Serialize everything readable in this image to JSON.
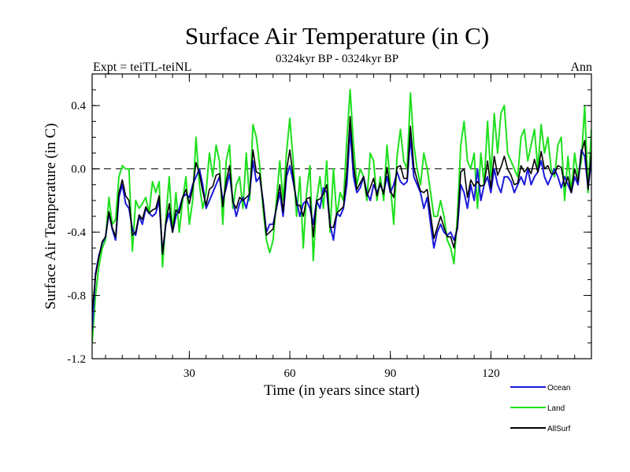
{
  "chart_data": {
    "type": "line",
    "title": "Surface Air Temperature (in C)",
    "subtitle_left": "Expt = teiTL-teiNL",
    "subtitle_center": "0324kyr BP - 0324kyr BP",
    "subtitle_right": "Ann",
    "xlabel": "Time (in years since start)",
    "ylabel": "Surface Air Temperature (in C)",
    "xlim": [
      1,
      150
    ],
    "ylim": [
      -1.2,
      0.6
    ],
    "xticks": [
      30,
      60,
      90,
      120
    ],
    "xtick_labels": [
      "30",
      "60",
      "90",
      "120"
    ],
    "yticks": [
      -1.2,
      -0.8,
      -0.4,
      0.0,
      0.4
    ],
    "ytick_labels": [
      "-1.2",
      "-0.8",
      "-0.4",
      "0.0",
      "0.4"
    ],
    "reference_line": 0.0,
    "series": [
      {
        "name": "Ocean",
        "color": "#1a1adc",
        "values": [
          -1.02,
          -0.66,
          -0.55,
          -0.47,
          -0.43,
          -0.28,
          -0.38,
          -0.45,
          -0.18,
          -0.1,
          -0.22,
          -0.25,
          -0.38,
          -0.42,
          -0.3,
          -0.35,
          -0.25,
          -0.28,
          -0.3,
          -0.28,
          -0.2,
          -0.53,
          -0.35,
          -0.28,
          -0.4,
          -0.3,
          -0.25,
          -0.18,
          -0.16,
          -0.18,
          -0.1,
          -0.05,
          0.0,
          -0.1,
          -0.25,
          -0.2,
          -0.15,
          -0.1,
          -0.05,
          -0.2,
          -0.12,
          -0.03,
          -0.2,
          -0.3,
          -0.22,
          -0.18,
          -0.25,
          -0.15,
          0.05,
          -0.08,
          -0.05,
          -0.2,
          -0.4,
          -0.35,
          -0.35,
          -0.25,
          -0.15,
          -0.3,
          -0.05,
          0.02,
          -0.08,
          -0.2,
          -0.3,
          -0.22,
          -0.2,
          -0.25,
          -0.35,
          -0.2,
          -0.25,
          -0.12,
          -0.15,
          -0.35,
          -0.45,
          -0.28,
          -0.3,
          -0.25,
          -0.1,
          0.25,
          -0.05,
          -0.15,
          -0.12,
          -0.05,
          -0.15,
          -0.2,
          -0.1,
          -0.15,
          -0.1,
          -0.15,
          -0.05,
          -0.15,
          -0.1,
          -0.02,
          -0.08,
          -0.1,
          -0.08,
          0.2,
          -0.05,
          -0.1,
          -0.15,
          -0.25,
          -0.18,
          -0.35,
          -0.5,
          -0.4,
          -0.35,
          -0.4,
          -0.42,
          -0.4,
          -0.45,
          -0.38,
          -0.1,
          -0.15,
          -0.25,
          -0.1,
          -0.2,
          0.0,
          -0.2,
          -0.1,
          -0.05,
          -0.15,
          0.0,
          -0.1,
          -0.15,
          -0.05,
          -0.05,
          -0.08,
          -0.15,
          -0.1,
          -0.05,
          -0.1,
          0.0,
          -0.1,
          -0.05,
          -0.02,
          0.05,
          -0.05,
          -0.1,
          -0.05,
          0.0,
          -0.05,
          -0.12,
          -0.05,
          -0.1,
          -0.15,
          -0.05,
          -0.1,
          0.12,
          0.08,
          -0.12,
          0.05
        ]
      },
      {
        "name": "Land",
        "color": "#1ee01e",
        "values": [
          -1.1,
          -0.8,
          -0.62,
          -0.5,
          -0.45,
          -0.18,
          -0.35,
          -0.32,
          -0.05,
          0.02,
          0.0,
          0.0,
          -0.52,
          -0.2,
          -0.25,
          -0.22,
          -0.18,
          -0.28,
          -0.08,
          -0.15,
          -0.08,
          -0.62,
          -0.32,
          -0.05,
          -0.4,
          -0.15,
          -0.4,
          -0.2,
          -0.05,
          -0.35,
          -0.2,
          0.2,
          -0.1,
          -0.25,
          -0.15,
          0.1,
          -0.05,
          0.15,
          0.05,
          -0.35,
          0.05,
          0.15,
          -0.25,
          -0.1,
          -0.05,
          -0.25,
          0.1,
          -0.2,
          0.28,
          0.2,
          0.02,
          -0.25,
          -0.45,
          -0.53,
          -0.45,
          -0.2,
          0.05,
          -0.2,
          0.1,
          0.32,
          0.05,
          -0.3,
          -0.05,
          -0.5,
          -0.15,
          0.02,
          -0.58,
          -0.2,
          -0.05,
          -0.25,
          0.05,
          -0.4,
          0.0,
          -0.3,
          -0.15,
          -0.2,
          0.18,
          0.5,
          0.15,
          -0.1,
          0.0,
          -0.05,
          -0.2,
          0.1,
          0.05,
          -0.2,
          -0.05,
          -0.2,
          0.15,
          -0.1,
          -0.35,
          0.08,
          0.25,
          0.05,
          0.0,
          0.48,
          0.15,
          0.0,
          -0.1,
          0.1,
          0.0,
          -0.15,
          -0.3,
          -0.3,
          -0.2,
          -0.3,
          -0.45,
          -0.5,
          -0.6,
          -0.3,
          0.15,
          0.3,
          0.05,
          0.0,
          0.1,
          -0.25,
          0.1,
          -0.1,
          0.3,
          -0.05,
          0.35,
          0.1,
          0.35,
          0.4,
          0.1,
          0.05,
          0.0,
          -0.05,
          0.2,
          0.25,
          0.05,
          0.15,
          0.25,
          0.0,
          0.28,
          0.1,
          0.2,
          0.0,
          -0.05,
          0.15,
          0.2,
          -0.2,
          0.08,
          -0.15,
          0.1,
          -0.05,
          0.05,
          0.4,
          -0.15,
          0.25
        ]
      },
      {
        "name": "AllSurf",
        "color": "#000000",
        "values": [
          -0.9,
          -0.68,
          -0.56,
          -0.46,
          -0.43,
          -0.27,
          -0.37,
          -0.43,
          -0.15,
          -0.07,
          -0.17,
          -0.2,
          -0.42,
          -0.4,
          -0.29,
          -0.32,
          -0.24,
          -0.28,
          -0.26,
          -0.25,
          -0.17,
          -0.54,
          -0.34,
          -0.22,
          -0.4,
          -0.26,
          -0.28,
          -0.18,
          -0.13,
          -0.22,
          -0.12,
          0.04,
          -0.03,
          -0.14,
          -0.23,
          -0.13,
          -0.11,
          -0.04,
          -0.03,
          -0.24,
          -0.08,
          0.02,
          -0.21,
          -0.25,
          -0.18,
          -0.2,
          -0.18,
          -0.16,
          0.12,
          -0.02,
          -0.03,
          -0.21,
          -0.42,
          -0.4,
          -0.38,
          -0.24,
          -0.1,
          -0.27,
          -0.01,
          0.12,
          -0.05,
          -0.23,
          -0.23,
          -0.3,
          -0.19,
          -0.18,
          -0.43,
          -0.2,
          -0.19,
          -0.16,
          -0.1,
          -0.37,
          -0.37,
          -0.28,
          -0.26,
          -0.24,
          -0.02,
          0.33,
          0.02,
          -0.13,
          -0.09,
          -0.05,
          -0.17,
          -0.12,
          -0.06,
          -0.17,
          -0.09,
          -0.16,
          0.01,
          -0.14,
          -0.18,
          0.01,
          0.02,
          -0.06,
          -0.06,
          0.27,
          0.01,
          -0.07,
          -0.14,
          -0.15,
          -0.13,
          -0.29,
          -0.44,
          -0.37,
          -0.3,
          -0.37,
          -0.43,
          -0.43,
          -0.5,
          -0.36,
          -0.02,
          0.0,
          -0.18,
          -0.07,
          -0.11,
          -0.08,
          -0.11,
          -0.1,
          0.05,
          -0.12,
          0.08,
          -0.04,
          0.01,
          0.08,
          0.0,
          -0.04,
          -0.1,
          -0.09,
          0.02,
          -0.02,
          0.01,
          -0.03,
          0.06,
          -0.02,
          0.11,
          0.0,
          0.02,
          -0.03,
          -0.03,
          0.02,
          0.01,
          -0.11,
          -0.05,
          -0.15,
          0.0,
          -0.08,
          0.1,
          0.18,
          -0.13,
          0.11
        ]
      }
    ]
  }
}
